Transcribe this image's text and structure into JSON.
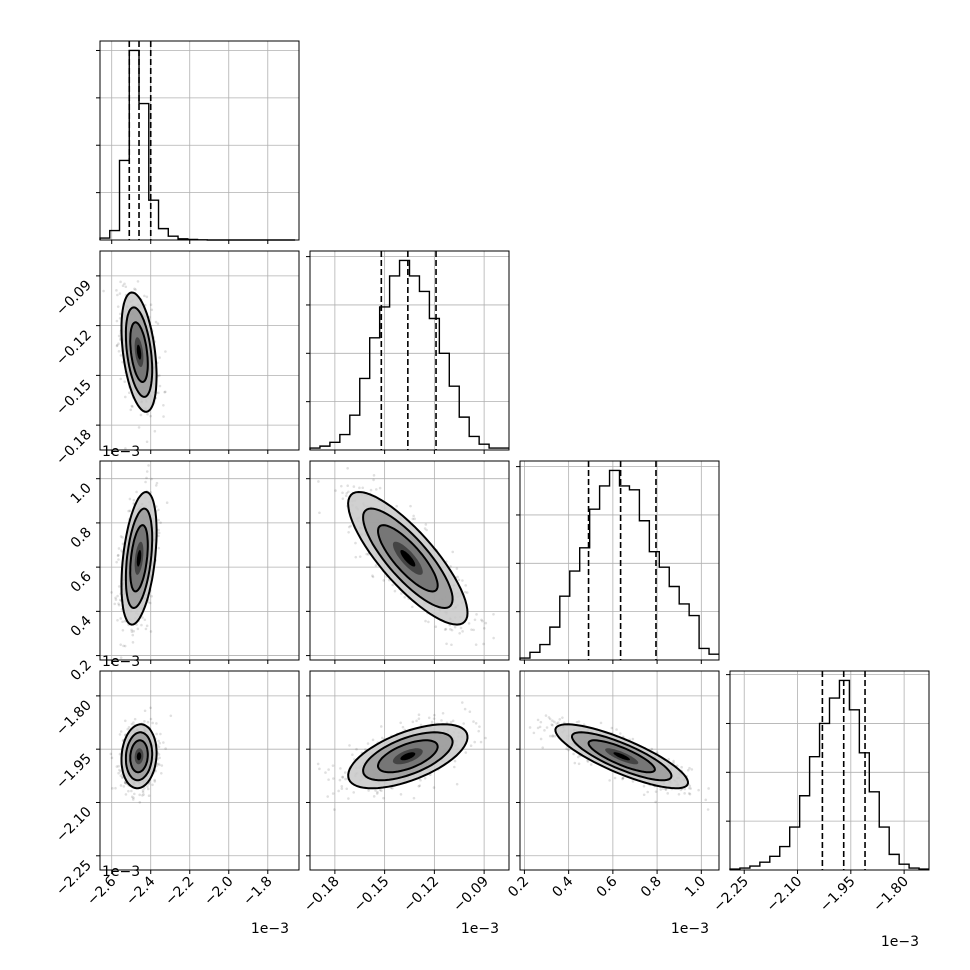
{
  "chart_data": {
    "type": "corner",
    "parameters": [
      {
        "range": [
          -2.66,
          -1.64
        ],
        "ticks": [
          -2.6,
          -2.4,
          -2.2,
          -2.0,
          -1.8
        ],
        "tick_labels": [
          "−2.6",
          "−2.4",
          "−2.2",
          "−2.0",
          "−1.8"
        ],
        "offset_label": "1e−3",
        "quantiles": [
          -2.51,
          -2.46,
          -2.4
        ],
        "hist_bins": [
          -2.66,
          -2.61,
          -2.56,
          -2.51,
          -2.46,
          -2.41,
          -2.36,
          -2.31,
          -2.26,
          -2.21,
          -2.16,
          -2.11,
          -2.06,
          -2.01,
          -1.96,
          -1.91,
          -1.86,
          -1.81,
          -1.76,
          -1.71,
          -1.66
        ],
        "hist_counts": [
          1,
          5,
          42,
          100,
          72,
          21,
          6,
          2,
          0.6,
          0.3,
          0.1,
          0,
          0,
          0,
          0,
          0,
          0,
          0,
          0,
          0
        ]
      },
      {
        "range": [
          -0.195,
          -0.075
        ],
        "ticks": [
          -0.18,
          -0.15,
          -0.12,
          -0.09
        ],
        "tick_labels": [
          "−0.18",
          "−0.15",
          "−0.12",
          "−0.09"
        ],
        "offset_label": "1e−3",
        "quantiles": [
          -0.152,
          -0.136,
          -0.119
        ],
        "hist_bins": [
          -0.195,
          -0.189,
          -0.183,
          -0.177,
          -0.171,
          -0.165,
          -0.159,
          -0.153,
          -0.147,
          -0.141,
          -0.135,
          -0.129,
          -0.123,
          -0.117,
          -0.111,
          -0.105,
          -0.099,
          -0.093,
          -0.087,
          -0.081,
          -0.075
        ],
        "hist_counts": [
          1,
          2,
          4,
          8,
          18,
          37,
          58,
          74,
          90,
          98,
          90,
          82,
          68,
          50,
          33,
          17,
          7,
          3,
          1,
          1
        ]
      },
      {
        "range": [
          0.18,
          1.08
        ],
        "ticks": [
          0.2,
          0.4,
          0.6,
          0.8,
          1.0
        ],
        "tick_labels": [
          "0.2",
          "0.4",
          "0.6",
          "0.8",
          "1.0"
        ],
        "offset_label": "1e−3",
        "quantiles": [
          0.49,
          0.635,
          0.795
        ],
        "hist_bins": [
          0.18,
          0.225,
          0.27,
          0.315,
          0.36,
          0.405,
          0.45,
          0.495,
          0.54,
          0.585,
          0.63,
          0.675,
          0.72,
          0.765,
          0.81,
          0.855,
          0.9,
          0.945,
          0.99,
          1.035,
          1.08
        ],
        "hist_counts": [
          1,
          4,
          8,
          17,
          33,
          46,
          58,
          78,
          90,
          98,
          90,
          88,
          72,
          56,
          48,
          38,
          29,
          23,
          6,
          3
        ]
      },
      {
        "range": [
          -2.29,
          -1.73
        ],
        "ticks": [
          -2.25,
          -2.1,
          -1.95,
          -1.8
        ],
        "tick_labels": [
          "−2.25",
          "−2.10",
          "−1.95",
          "−1.80"
        ],
        "offset_label": "1e−3",
        "quantiles": [
          -2.03,
          -1.97,
          -1.91
        ],
        "hist_bins": [
          -2.29,
          -2.262,
          -2.234,
          -2.206,
          -2.178,
          -2.15,
          -2.122,
          -2.094,
          -2.066,
          -2.038,
          -2.01,
          -1.982,
          -1.954,
          -1.926,
          -1.898,
          -1.87,
          -1.842,
          -1.814,
          -1.786,
          -1.758,
          -1.73
        ],
        "hist_counts": [
          0.5,
          1,
          2,
          4,
          7,
          12,
          22,
          38,
          58,
          75,
          88,
          97,
          82,
          60,
          40,
          22,
          8,
          3,
          1,
          0.5
        ]
      }
    ],
    "pairs": [
      {
        "row": 1,
        "col": 0,
        "mean": [
          -2.46,
          -0.136
        ],
        "sd": [
          0.045,
          0.018
        ],
        "rho": -0.4
      },
      {
        "row": 2,
        "col": 0,
        "mean": [
          -2.46,
          0.64
        ],
        "sd": [
          0.045,
          0.15
        ],
        "rho": 0.4
      },
      {
        "row": 2,
        "col": 1,
        "mean": [
          -0.136,
          0.64
        ],
        "sd": [
          0.018,
          0.15
        ],
        "rho": -0.82
      },
      {
        "row": 3,
        "col": 0,
        "mean": [
          -2.46,
          -1.97
        ],
        "sd": [
          0.045,
          0.045
        ],
        "rho": 0.1
      },
      {
        "row": 3,
        "col": 1,
        "mean": [
          -0.136,
          -1.97
        ],
        "sd": [
          0.018,
          0.045
        ],
        "rho": 0.6
      },
      {
        "row": 3,
        "col": 2,
        "mean": [
          0.64,
          -1.97
        ],
        "sd": [
          0.15,
          0.045
        ],
        "rho": -0.82
      }
    ],
    "grid": true,
    "contour_levels_sigma": [
      0.5,
      1.0,
      1.5,
      2.0
    ]
  }
}
